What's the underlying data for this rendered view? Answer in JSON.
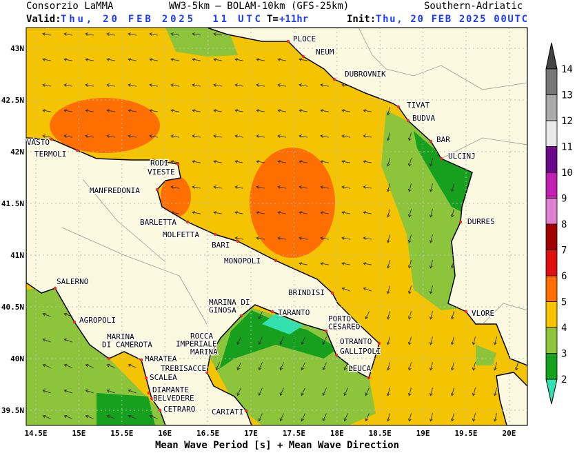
{
  "header": {
    "organization": "Consorzio LaMMA",
    "model": "WW3-5km – BOLAM-10km (GFS-25km)",
    "region": "Southern-Adriatic",
    "valid_label": "Valid:",
    "valid_time": "Thu, 20 FEB 2025  11 UTC",
    "lead_label": "T=",
    "lead_time": "+11hr",
    "init_label": "Init:",
    "init_time": "Thu, 20 FEB 2025 00UTC"
  },
  "footer": "Mean Wave Period [s] + Mean Wave Direction",
  "axes": {
    "x_ticks": [
      "14.5E",
      "15E",
      "15.5E",
      "16E",
      "16.5E",
      "17E",
      "17.5E",
      "18E",
      "18.5E",
      "19E",
      "19.5E",
      "20E"
    ],
    "y_ticks": [
      "43N",
      "42.5N",
      "42N",
      "41.5N",
      "41N",
      "40.5N",
      "40N",
      "39.5N"
    ]
  },
  "colorbar": {
    "levels": [
      2,
      3,
      4,
      5,
      6,
      7,
      8,
      9,
      10,
      11,
      12,
      13,
      14
    ],
    "colors": [
      "#16a01e",
      "#8cc43c",
      "#f5c400",
      "#ff6e00",
      "#e01010",
      "#a00000",
      "#e080d0",
      "#c020b0",
      "#6a0a8a",
      "#e8e8e8",
      "#aaaaaa",
      "#777777"
    ],
    "under_color": "#33e0b0",
    "over_color": "#444444"
  },
  "cities": [
    {
      "lines": [
        "PLOCE"
      ]
    },
    {
      "lines": [
        "NEUM"
      ]
    },
    {
      "lines": [
        "DUBROVNIK"
      ]
    },
    {
      "lines": [
        "TIVAT"
      ]
    },
    {
      "lines": [
        "BUDVA"
      ]
    },
    {
      "lines": [
        "BAR"
      ]
    },
    {
      "lines": [
        "ULCINJ"
      ]
    },
    {
      "lines": [
        "DURRES"
      ]
    },
    {
      "lines": [
        "VLORE"
      ]
    },
    {
      "lines": [
        "VASTO"
      ]
    },
    {
      "lines": [
        "TERMOLI"
      ]
    },
    {
      "lines": [
        "RODI"
      ]
    },
    {
      "lines": [
        "VIESTE"
      ]
    },
    {
      "lines": [
        "MANFREDONIA"
      ]
    },
    {
      "lines": [
        "BARLETTA"
      ]
    },
    {
      "lines": [
        "MOLFETTA"
      ]
    },
    {
      "lines": [
        "BARI"
      ]
    },
    {
      "lines": [
        "MONOPOLI"
      ]
    },
    {
      "lines": [
        "BRINDISI"
      ]
    },
    {
      "lines": [
        "TARANTO"
      ]
    },
    {
      "lines": [
        "MARINA DI",
        "GINOSA"
      ]
    },
    {
      "lines": [
        "PORTO",
        "CESAREO"
      ]
    },
    {
      "lines": [
        "OTRANTO"
      ]
    },
    {
      "lines": [
        "GALLIPOLI"
      ]
    },
    {
      "lines": [
        "LEUCA"
      ]
    },
    {
      "lines": [
        "ROCCA",
        "IMPERIALE",
        "MARINA"
      ]
    },
    {
      "lines": [
        "TREBISACCE"
      ]
    },
    {
      "lines": [
        "CARIATI"
      ]
    },
    {
      "lines": [
        "SALERNO"
      ]
    },
    {
      "lines": [
        "AGROPOLI"
      ]
    },
    {
      "lines": [
        "MARINA",
        "DI CAMEROTA"
      ]
    },
    {
      "lines": [
        "MARATEA"
      ]
    },
    {
      "lines": [
        "SCALEA"
      ]
    },
    {
      "lines": [
        "DIAMANTE"
      ]
    },
    {
      "lines": [
        "BELVEDERE"
      ]
    },
    {
      "lines": [
        "CETRARO"
      ]
    }
  ]
}
